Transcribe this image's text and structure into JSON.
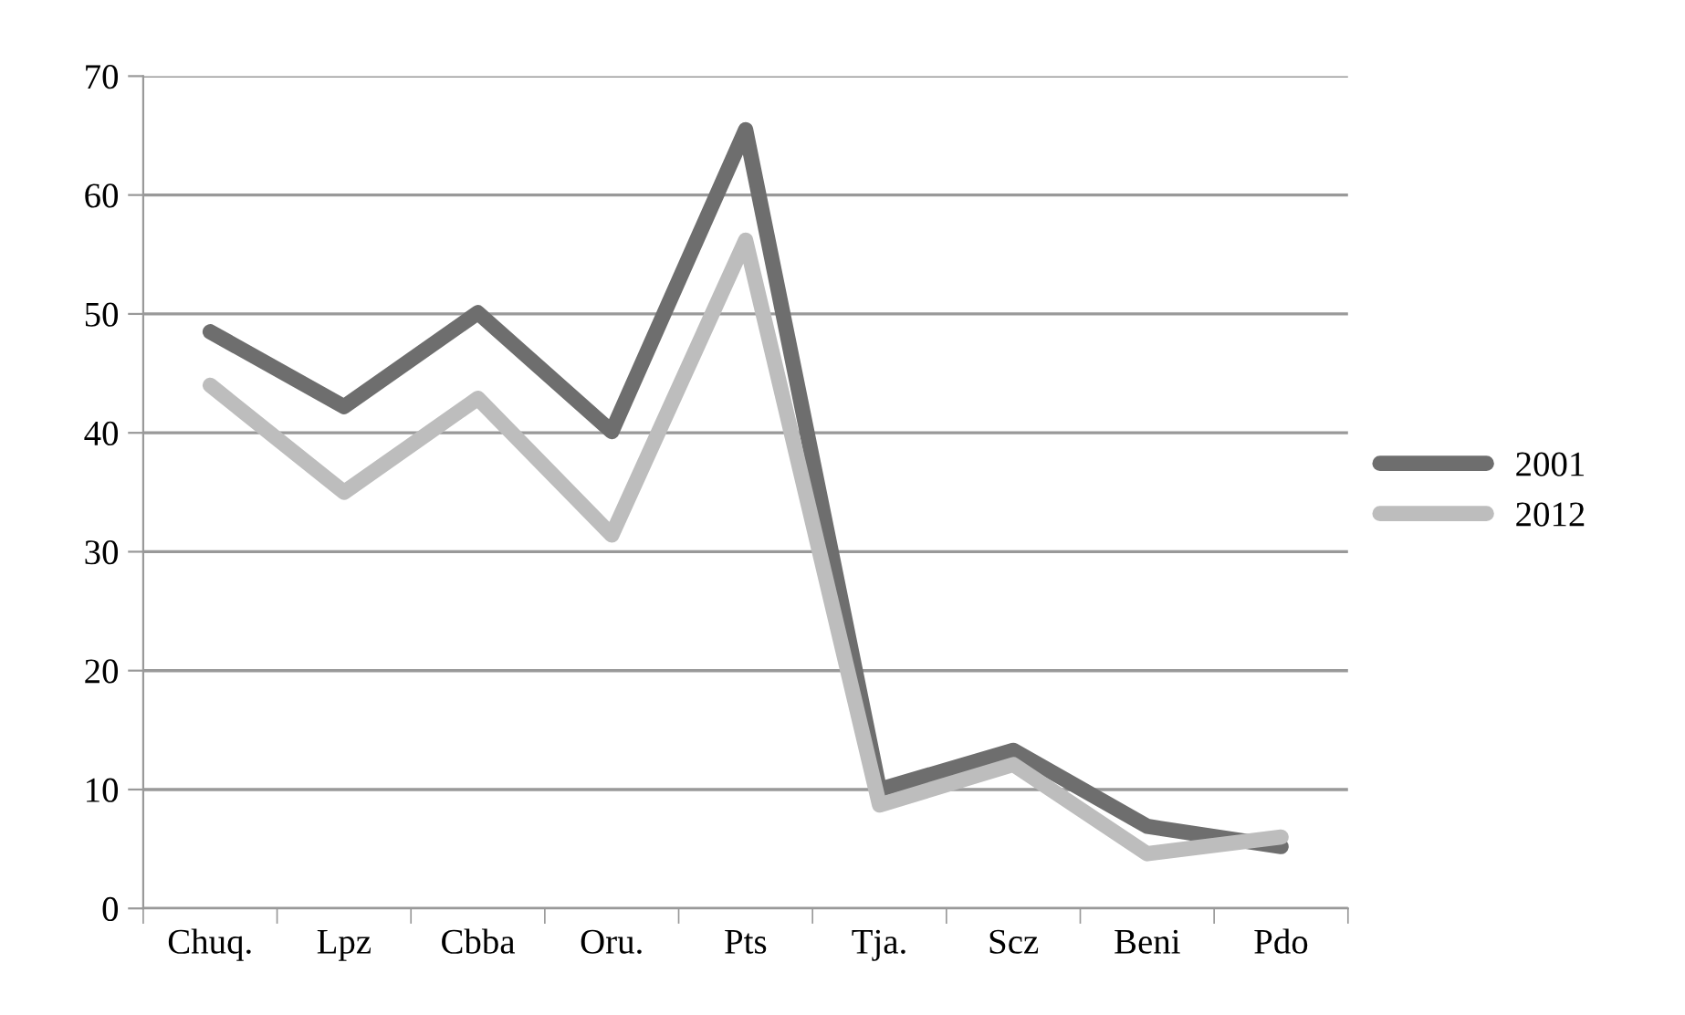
{
  "chart_data": {
    "type": "line",
    "categories": [
      "Chuq.",
      "Lpz",
      "Cbba",
      "Oru.",
      "Pts",
      "Tja.",
      "Scz",
      "Beni",
      "Pdo"
    ],
    "series": [
      {
        "name": "2001",
        "color": "#6e6e6e",
        "values": [
          48.5,
          42.2,
          50.1,
          40.1,
          65.5,
          10,
          13.3,
          6.9,
          5.2
        ]
      },
      {
        "name": "2012",
        "color": "#bdbdbd",
        "values": [
          44,
          35,
          42.9,
          31.4,
          56.2,
          8.7,
          12.1,
          4.6,
          6.0
        ]
      }
    ],
    "ylim": [
      0,
      70
    ],
    "yticks": [
      0,
      10,
      20,
      30,
      40,
      50,
      60,
      70
    ],
    "grid": "y",
    "legend": "right",
    "marker": "none",
    "line_style": "solid"
  }
}
